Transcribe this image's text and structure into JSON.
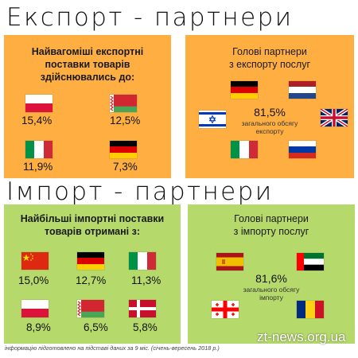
{
  "export_heading": "Експорт - партнери",
  "import_heading": "Імпорт - партнери",
  "export_goods": {
    "title_lines": [
      "Найвагоміші експортні",
      "поставки товарів",
      "здійснювались до:"
    ],
    "items": [
      {
        "flag": "poland-flag",
        "value": "15,4%"
      },
      {
        "flag": "belarus-flag",
        "value": "12,5%"
      },
      {
        "flag": "italy-flag",
        "value": "11,9%"
      },
      {
        "flag": "germany-flag",
        "value": "7,3%"
      }
    ]
  },
  "export_services": {
    "title_lines": [
      "Голові партнери",
      "з експорту послуг"
    ],
    "total": "81,5%",
    "total_note_lines": [
      "загального обсягу",
      "експорту"
    ],
    "flags": [
      "germany-flag",
      "netherlands-flag",
      "israel-flag",
      "uk-flag",
      "italy-flag",
      "russia-flag"
    ]
  },
  "import_goods": {
    "title_lines": [
      "Найбільші імпортні поставки",
      "товарів отримані з:"
    ],
    "items": [
      {
        "flag": "china-flag",
        "value": "15,0%"
      },
      {
        "flag": "germany-flag",
        "value": "12,7%"
      },
      {
        "flag": "italy-flag",
        "value": "11,3%"
      },
      {
        "flag": "poland-flag",
        "value": "8,9%"
      },
      {
        "flag": "belarus-flag",
        "value": "6,5%"
      },
      {
        "flag": "denmark-flag",
        "value": "5,8%"
      }
    ]
  },
  "import_services": {
    "title_lines": [
      "Голові партнери",
      "з імпорту послуг"
    ],
    "total": "81,6%",
    "total_note_lines": [
      "загального обсягу",
      "імпорту"
    ],
    "flags": [
      "spain-flag",
      "uae-flag",
      "georgia-flag",
      "romania-flag"
    ]
  },
  "footnote": "інформацію підготовлено на підставі даних за 9 міс. (січень-вересень 2018 р.)",
  "watermark": "zt-news.org.ua",
  "colors": {
    "export_card": "#ffae42",
    "import_card": "#b5d96a"
  }
}
